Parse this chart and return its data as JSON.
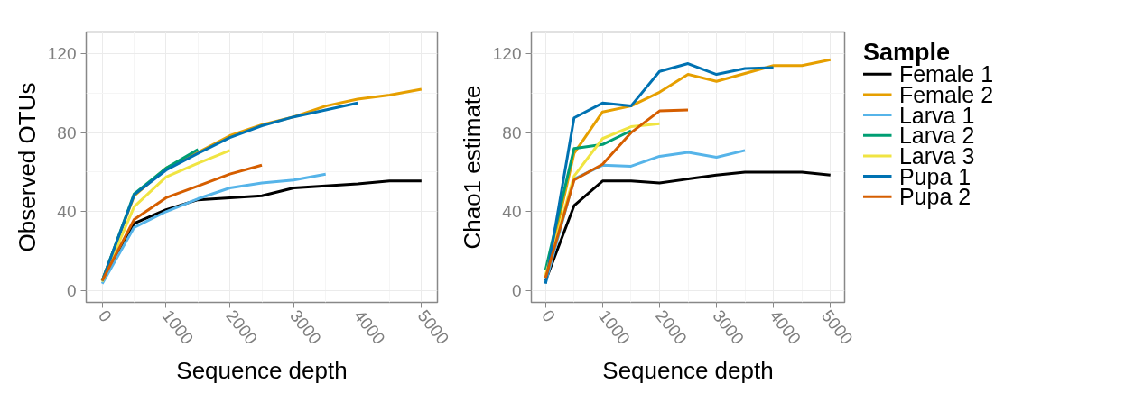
{
  "chart_data": [
    {
      "type": "line",
      "xlabel": "Sequence depth",
      "ylabel": "Observed OTUs",
      "xlim": [
        -250,
        5250
      ],
      "ylim": [
        -6,
        131
      ],
      "xticks": [
        0,
        1000,
        2000,
        3000,
        4000,
        5000
      ],
      "yticks": [
        0,
        40,
        80,
        120
      ],
      "grid": true,
      "series": [
        {
          "color": "#000000",
          "x": [
            0,
            500,
            1000,
            1500,
            2000,
            2500,
            3000,
            3500,
            4000,
            4500,
            5000
          ],
          "values": [
            5,
            34,
            41,
            46,
            47,
            48,
            52,
            53,
            54,
            55.5,
            55.5
          ]
        },
        {
          "color": "#e69f00",
          "x": [
            0,
            500,
            1000,
            1500,
            2000,
            2500,
            3000,
            3500,
            4000,
            4500,
            5000
          ],
          "values": [
            5,
            48,
            62,
            70,
            78.5,
            84,
            88,
            93.5,
            97,
            99,
            102
          ]
        },
        {
          "color": "#56b4e9",
          "x": [
            0,
            500,
            1000,
            1500,
            2000,
            2500,
            3000,
            3500
          ],
          "values": [
            3.5,
            32,
            40,
            46.5,
            52,
            54.5,
            56,
            59
          ]
        },
        {
          "color": "#009e73",
          "x": [
            0,
            500,
            1000,
            1500
          ],
          "values": [
            5,
            49,
            62,
            71.5
          ]
        },
        {
          "color": "#f0e442",
          "x": [
            0,
            500,
            1000,
            1500,
            2000
          ],
          "values": [
            4.5,
            42.5,
            57.5,
            64.5,
            71
          ]
        },
        {
          "color": "#0072b2",
          "x": [
            0,
            500,
            1000,
            1500,
            2000,
            2500,
            3000,
            3500,
            4000
          ],
          "values": [
            5,
            48.5,
            61,
            69.5,
            77.5,
            83.5,
            88,
            91.5,
            95
          ]
        },
        {
          "color": "#d55e00",
          "x": [
            0,
            500,
            1000,
            1500,
            2000,
            2500
          ],
          "values": [
            5,
            36,
            47,
            53,
            59,
            63.5
          ]
        }
      ]
    },
    {
      "type": "line",
      "xlabel": "Sequence depth",
      "ylabel": "Chao1 estimate",
      "legend_title": "Sample",
      "xlim": [
        -250,
        5250
      ],
      "ylim": [
        -6,
        131
      ],
      "xticks": [
        0,
        1000,
        2000,
        3000,
        4000,
        5000
      ],
      "yticks": [
        0,
        40,
        80,
        120
      ],
      "grid": true,
      "legend": "right",
      "series": [
        {
          "name": "Female 1",
          "color": "#000000",
          "x": [
            0,
            500,
            1000,
            1500,
            2000,
            2500,
            3000,
            3500,
            4000,
            4500,
            5000
          ],
          "values": [
            5,
            43,
            55.5,
            55.5,
            54.5,
            56.5,
            58.5,
            60,
            60,
            60,
            58.5
          ]
        },
        {
          "name": "Female 2",
          "color": "#e69f00",
          "x": [
            0,
            500,
            1000,
            1500,
            2000,
            2500,
            3000,
            3500,
            4000,
            4500,
            5000
          ],
          "values": [
            6.5,
            69.5,
            90.5,
            93.5,
            100.5,
            109.5,
            106,
            110,
            114,
            114,
            117
          ]
        },
        {
          "name": "Larva 1",
          "color": "#56b4e9",
          "x": [
            0,
            500,
            1000,
            1500,
            2000,
            2500,
            3000,
            3500
          ],
          "values": [
            4,
            56.5,
            63.5,
            63,
            68,
            70,
            67.5,
            71
          ]
        },
        {
          "name": "Larva 2",
          "color": "#009e73",
          "x": [
            0,
            500,
            1000,
            1500
          ],
          "values": [
            10.5,
            72,
            74,
            81
          ]
        },
        {
          "name": "Larva 3",
          "color": "#f0e442",
          "x": [
            0,
            500,
            1000,
            1500,
            2000
          ],
          "values": [
            8,
            58,
            77,
            83,
            84.5
          ]
        },
        {
          "name": "Pupa 1",
          "color": "#0072b2",
          "x": [
            0,
            500,
            1000,
            1500,
            2000,
            2500,
            3000,
            3500,
            4000
          ],
          "values": [
            3.5,
            87.5,
            95,
            93.5,
            111,
            115,
            109.5,
            112.5,
            113
          ]
        },
        {
          "name": "Pupa 2",
          "color": "#d55e00",
          "x": [
            0,
            500,
            1000,
            1500,
            2000,
            2500
          ],
          "values": [
            6.5,
            56,
            64,
            80,
            91,
            91.5
          ]
        }
      ]
    }
  ]
}
